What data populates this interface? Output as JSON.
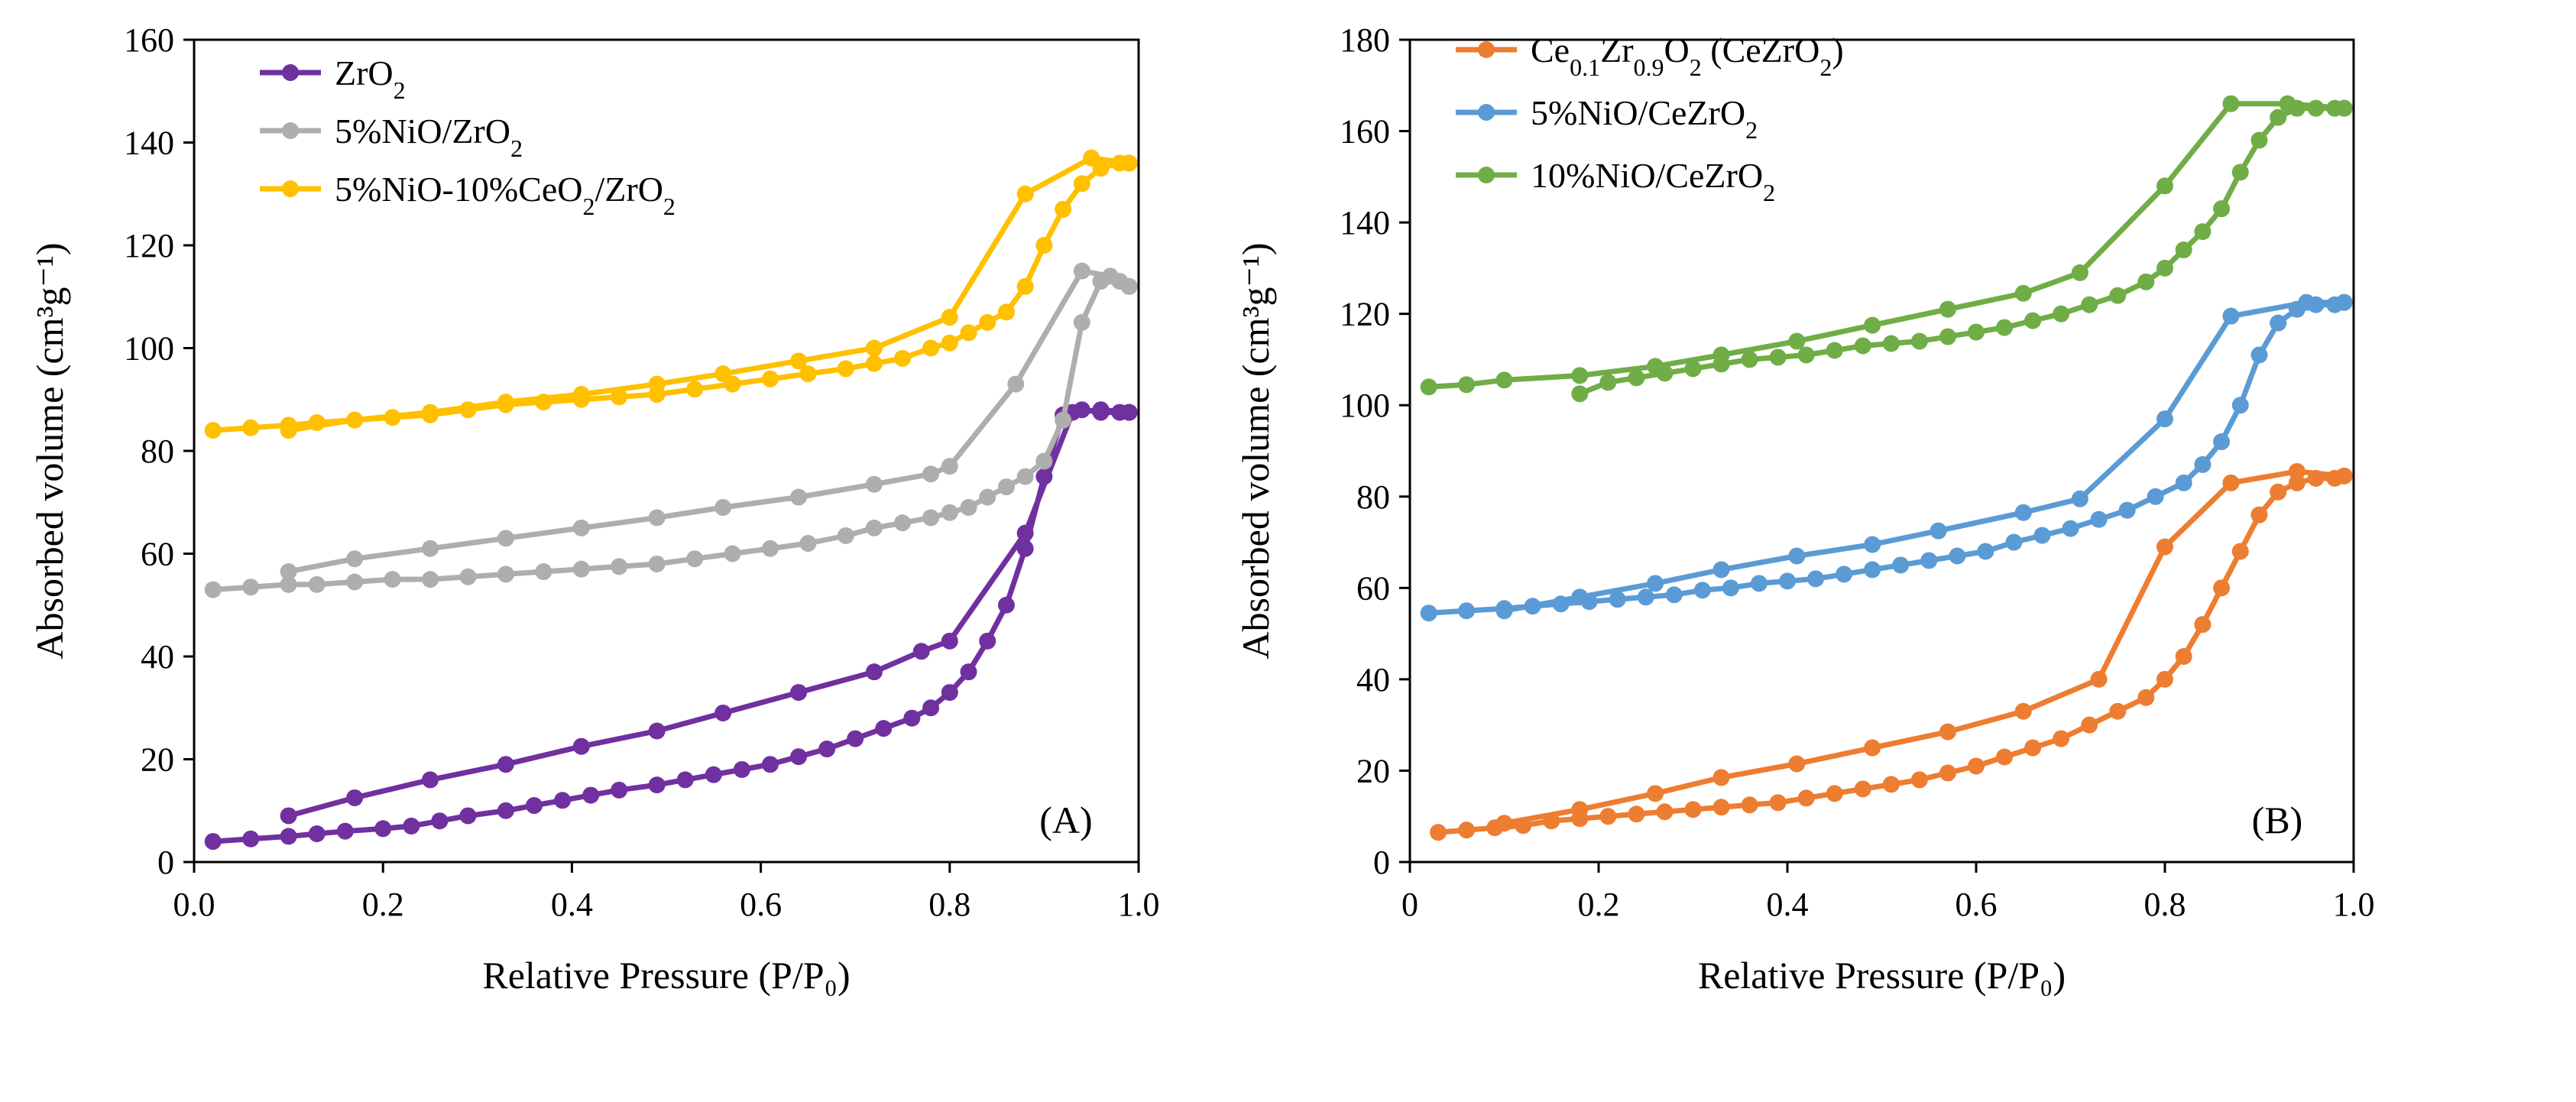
{
  "chart_data": [
    {
      "type": "line",
      "panel_label": "(A)",
      "xlabel": "Relative Pressure (P/P₀)",
      "ylabel": "Absorbed volume (cm³g⁻¹)",
      "xlim": [
        0,
        1.0
      ],
      "ylim": [
        0,
        160
      ],
      "xticks": [
        "0.0",
        "0.2",
        "0.4",
        "0.6",
        "0.8",
        "1.0"
      ],
      "yticks": [
        "0",
        "20",
        "40",
        "60",
        "80",
        "100",
        "120",
        "140",
        "160"
      ],
      "legend_position": "top-left",
      "series": [
        {
          "name": "ZrO2",
          "legend_html": "ZrO<tspan baseline-shift=\"sub\" font-size=\"32\">2</tspan>",
          "color": "#7030A0",
          "adsorption": {
            "x": [
              0.02,
              0.06,
              0.1,
              0.13,
              0.16,
              0.2,
              0.23,
              0.26,
              0.29,
              0.33,
              0.36,
              0.39,
              0.42,
              0.45,
              0.49,
              0.52,
              0.55,
              0.58,
              0.61,
              0.64,
              0.67,
              0.7,
              0.73,
              0.76,
              0.78,
              0.8,
              0.82,
              0.84,
              0.86,
              0.88,
              0.9,
              0.92,
              0.94,
              0.96,
              0.98,
              0.99
            ],
            "y": [
              4,
              4.5,
              5,
              5.5,
              6,
              6.5,
              7,
              8,
              9,
              10,
              11,
              12,
              13,
              14,
              15,
              16,
              17,
              18,
              19,
              20.5,
              22,
              24,
              26,
              28,
              30,
              33,
              37,
              43,
              50,
              61,
              75,
              87,
              88,
              87.5,
              87.5,
              87.5
            ]
          },
          "desorption": {
            "x": [
              0.99,
              0.96,
              0.93,
              0.88,
              0.8,
              0.77,
              0.72,
              0.64,
              0.56,
              0.49,
              0.41,
              0.33,
              0.25,
              0.17,
              0.1
            ],
            "y": [
              87.5,
              88,
              87.5,
              64,
              43,
              41,
              37,
              33,
              29,
              25.5,
              22.5,
              19,
              16,
              12.5,
              9
            ]
          }
        },
        {
          "name": "5%NiO/ZrO2",
          "legend_html": "5%NiO/ZrO<tspan baseline-shift=\"sub\" font-size=\"32\">2</tspan>",
          "color": "#AEAEAE",
          "adsorption": {
            "x": [
              0.02,
              0.06,
              0.1,
              0.13,
              0.17,
              0.21,
              0.25,
              0.29,
              0.33,
              0.37,
              0.41,
              0.45,
              0.49,
              0.53,
              0.57,
              0.61,
              0.65,
              0.69,
              0.72,
              0.75,
              0.78,
              0.8,
              0.82,
              0.84,
              0.86,
              0.88,
              0.9,
              0.92,
              0.94,
              0.96,
              0.98,
              0.99
            ],
            "y": [
              53,
              53.5,
              54,
              54,
              54.5,
              55,
              55,
              55.5,
              56,
              56.5,
              57,
              57.5,
              58,
              59,
              60,
              61,
              62,
              63.5,
              65,
              66,
              67,
              68,
              69,
              71,
              73,
              75,
              78,
              86,
              105,
              113,
              113,
              112
            ]
          },
          "desorption": {
            "x": [
              0.99,
              0.97,
              0.94,
              0.87,
              0.8,
              0.78,
              0.72,
              0.64,
              0.56,
              0.49,
              0.41,
              0.33,
              0.25,
              0.17,
              0.1
            ],
            "y": [
              112,
              114,
              115,
              93,
              77,
              75.5,
              73.5,
              71,
              69,
              67,
              65,
              63,
              61,
              59,
              56.5
            ]
          }
        },
        {
          "name": "5%NiO-10%CeO2/ZrO2",
          "legend_html": "5%NiO-10%CeO<tspan baseline-shift=\"sub\" font-size=\"32\">2</tspan>/ZrO<tspan baseline-shift=\"sub\" font-size=\"32\">2</tspan>",
          "color": "#FFC000",
          "adsorption": {
            "x": [
              0.02,
              0.06,
              0.1,
              0.13,
              0.17,
              0.21,
              0.25,
              0.29,
              0.33,
              0.37,
              0.41,
              0.45,
              0.49,
              0.53,
              0.57,
              0.61,
              0.65,
              0.69,
              0.72,
              0.75,
              0.78,
              0.8,
              0.82,
              0.84,
              0.86,
              0.88,
              0.9,
              0.92,
              0.94,
              0.96,
              0.98,
              0.99
            ],
            "y": [
              84,
              84.5,
              85,
              85.5,
              86,
              86.5,
              87,
              88,
              89,
              89.5,
              90,
              90.5,
              91,
              92,
              93,
              94,
              95,
              96,
              97,
              98,
              100,
              101,
              103,
              105,
              107,
              112,
              120,
              127,
              132,
              135,
              136,
              136
            ]
          },
          "desorption": {
            "x": [
              0.99,
              0.95,
              0.88,
              0.8,
              0.72,
              0.64,
              0.56,
              0.49,
              0.41,
              0.33,
              0.25,
              0.17,
              0.1
            ],
            "y": [
              136,
              137,
              130,
              106,
              100,
              97.5,
              95,
              93,
              91,
              89.5,
              87.5,
              86,
              84
            ]
          }
        }
      ]
    },
    {
      "type": "line",
      "panel_label": "(B)",
      "xlabel": "Relative Pressure (P/P₀)",
      "ylabel": "Absorbed volume (cm³g⁻¹)",
      "xlim": [
        0,
        1.0
      ],
      "ylim": [
        0,
        180
      ],
      "xticks": [
        "0",
        "0.2",
        "0.4",
        "0.6",
        "0.8",
        "1.0"
      ],
      "yticks": [
        "0",
        "20",
        "40",
        "60",
        "80",
        "100",
        "120",
        "140",
        "160",
        "180"
      ],
      "legend_position": "top-left",
      "series": [
        {
          "name": "Ce0.1Zr0.9O2 (CeZrO2)",
          "legend_html": "Ce<tspan baseline-shift=\"sub\" font-size=\"32\">0.1</tspan>Zr<tspan baseline-shift=\"sub\" font-size=\"32\">0.9</tspan>O<tspan baseline-shift=\"sub\" font-size=\"32\">2</tspan> (CeZrO<tspan baseline-shift=\"sub\" font-size=\"32\">2</tspan>)",
          "color": "#ED7D31",
          "adsorption": {
            "x": [
              0.03,
              0.06,
              0.09,
              0.12,
              0.15,
              0.18,
              0.21,
              0.24,
              0.27,
              0.3,
              0.33,
              0.36,
              0.39,
              0.42,
              0.45,
              0.48,
              0.51,
              0.54,
              0.57,
              0.6,
              0.63,
              0.66,
              0.69,
              0.72,
              0.75,
              0.78,
              0.8,
              0.82,
              0.84,
              0.86,
              0.88,
              0.9,
              0.92,
              0.94,
              0.96,
              0.98,
              0.99
            ],
            "y": [
              6.5,
              7,
              7.5,
              8,
              9,
              9.5,
              10,
              10.5,
              11,
              11.5,
              12,
              12.5,
              13,
              14,
              15,
              16,
              17,
              18,
              19.5,
              21,
              23,
              25,
              27,
              30,
              33,
              36,
              40,
              45,
              52,
              60,
              68,
              76,
              81,
              83,
              84,
              84,
              84.5
            ]
          },
          "desorption": {
            "x": [
              0.99,
              0.94,
              0.87,
              0.8,
              0.73,
              0.65,
              0.57,
              0.49,
              0.41,
              0.33,
              0.26,
              0.18,
              0.1
            ],
            "y": [
              84.5,
              85.5,
              83,
              69,
              40,
              33,
              28.5,
              25,
              21.5,
              18.5,
              15,
              11.5,
              8.5
            ]
          }
        },
        {
          "name": "5%NiO/CeZrO2",
          "legend_html": "5%NiO/CeZrO<tspan baseline-shift=\"sub\" font-size=\"32\">2</tspan>",
          "color": "#5B9BD5",
          "adsorption": {
            "x": [
              0.02,
              0.06,
              0.1,
              0.13,
              0.16,
              0.19,
              0.22,
              0.25,
              0.28,
              0.31,
              0.34,
              0.37,
              0.4,
              0.43,
              0.46,
              0.49,
              0.52,
              0.55,
              0.58,
              0.61,
              0.64,
              0.67,
              0.7,
              0.73,
              0.76,
              0.79,
              0.82,
              0.84,
              0.86,
              0.88,
              0.9,
              0.92,
              0.94,
              0.96,
              0.98,
              0.99
            ],
            "y": [
              54.5,
              55,
              55.5,
              56,
              56.5,
              57,
              57.5,
              58,
              58.5,
              59.5,
              60,
              61,
              61.5,
              62,
              63,
              64,
              65,
              66,
              67,
              68,
              70,
              71.5,
              73,
              75,
              77,
              80,
              83,
              87,
              92,
              100,
              111,
              118,
              121,
              122,
              122,
              122.5
            ]
          },
          "desorption": {
            "x": [
              0.99,
              0.95,
              0.87,
              0.8,
              0.71,
              0.65,
              0.56,
              0.49,
              0.41,
              0.33,
              0.26,
              0.18,
              0.1
            ],
            "y": [
              122.5,
              122.5,
              119.5,
              97,
              79.5,
              76.5,
              72.5,
              69.5,
              67,
              64,
              61,
              58,
              55
            ]
          }
        },
        {
          "name": "10%NiO/CeZrO2",
          "legend_html": "10%NiO/CeZrO<tspan baseline-shift=\"sub\" font-size=\"32\">2</tspan>",
          "color": "#70AD47",
          "adsorption": {
            "x": [
              0.18,
              0.21,
              0.24,
              0.27,
              0.3,
              0.33,
              0.36,
              0.39,
              0.42,
              0.45,
              0.48,
              0.51,
              0.54,
              0.57,
              0.6,
              0.63,
              0.66,
              0.69,
              0.72,
              0.75,
              0.78,
              0.8,
              0.82,
              0.84,
              0.86,
              0.88,
              0.9,
              0.92,
              0.94,
              0.96,
              0.98,
              0.99
            ],
            "y": [
              102.5,
              105,
              106,
              107,
              108,
              109,
              110,
              110.5,
              111,
              112,
              113,
              113.5,
              114,
              115,
              116,
              117,
              118.5,
              120,
              122,
              124,
              127,
              130,
              134,
              138,
              143,
              151,
              158,
              163,
              165,
              165,
              165,
              165
            ]
          },
          "desorption": {
            "x": [
              0.99,
              0.93,
              0.87,
              0.8,
              0.71,
              0.65,
              0.57,
              0.49,
              0.41,
              0.33,
              0.26,
              0.18,
              0.1,
              0.06,
              0.02
            ],
            "y": [
              165,
              166,
              166,
              148,
              129,
              124.5,
              121,
              117.5,
              114,
              111,
              108.5,
              106.5,
              105.5,
              104.5,
              104
            ]
          }
        }
      ]
    }
  ]
}
